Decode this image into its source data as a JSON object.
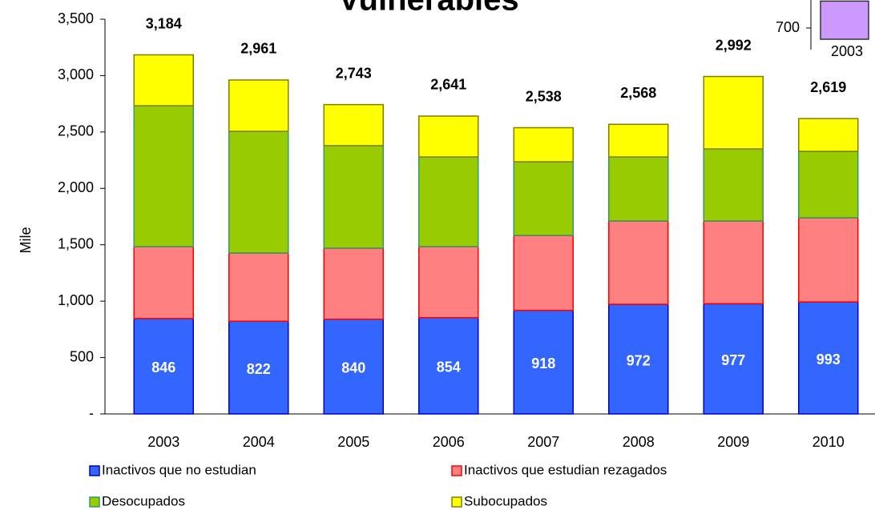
{
  "chart_data": [
    {
      "type": "stacked_bar",
      "title": "Vulnerables",
      "y_label": "Mile",
      "categories": [
        "2003",
        "2004",
        "2005",
        "2006",
        "2007",
        "2008",
        "2009",
        "2010"
      ],
      "series": [
        {
          "name": "Inactivos que no estudian",
          "color": "#3366ff",
          "border": "#0000cc",
          "values": [
            846,
            822,
            840,
            854,
            918,
            972,
            977,
            993
          ],
          "show_labels": true
        },
        {
          "name": "Inactivos que estudian rezagados",
          "color": "#ff8080",
          "border": "#ff0000",
          "values": [
            638,
            605,
            630,
            630,
            665,
            739,
            734,
            746
          ]
        },
        {
          "name": "Desocupados",
          "color": "#99cc00",
          "border": "#339966",
          "values": [
            1249,
            1079,
            909,
            795,
            653,
            568,
            639,
            589
          ]
        },
        {
          "name": "Subocupados",
          "color": "#ffff00",
          "border": "#808000",
          "values": [
            451,
            455,
            364,
            362,
            302,
            289,
            642,
            291
          ]
        }
      ],
      "totals": [
        3184,
        2961,
        2743,
        2641,
        2538,
        2568,
        2992,
        2619
      ],
      "total_labels": [
        "3,184",
        "2,961",
        "2,743",
        "2,641",
        "2,538",
        "2,568",
        "2,992",
        "2,619"
      ],
      "ylim": [
        0,
        3500
      ],
      "yticks": [
        {
          "value": 0,
          "label": "-"
        },
        500,
        {
          "value": 1000,
          "label": "1,000"
        },
        {
          "value": 1500,
          "label": "1,500"
        },
        {
          "value": 2000,
          "label": "2,000"
        },
        {
          "value": 2500,
          "label": "2,500"
        },
        {
          "value": 3000,
          "label": "3,000"
        },
        {
          "value": 3500,
          "label": "3,500"
        }
      ]
    },
    {
      "type": "bar",
      "categories": [
        "2003"
      ],
      "values": [
        820
      ],
      "color": "#cc99ff",
      "ylim": [
        650,
        825
      ],
      "yticks": [
        700
      ]
    }
  ]
}
